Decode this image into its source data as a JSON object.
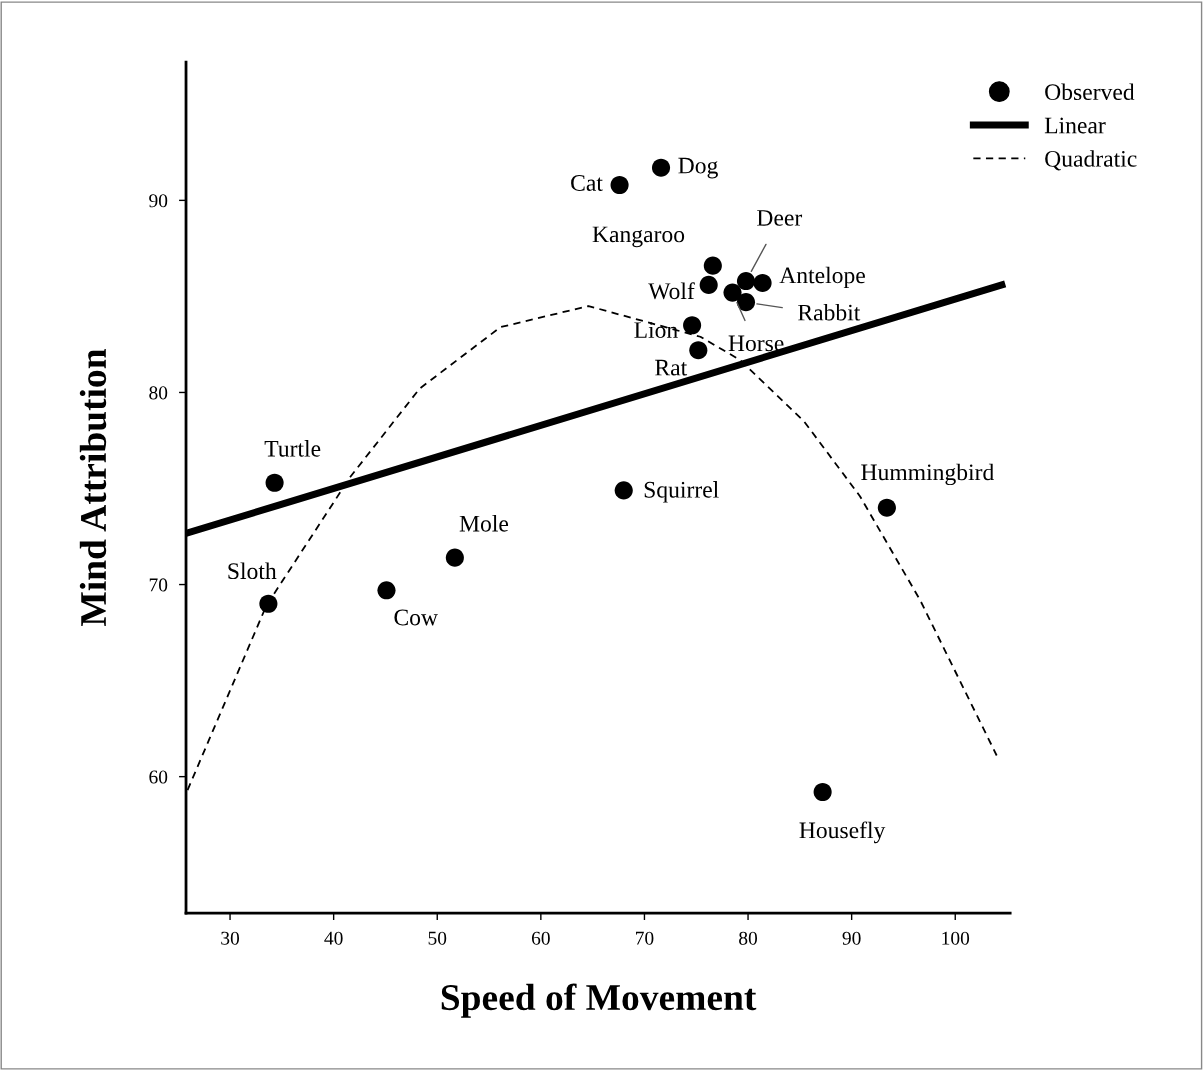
{
  "chart_data": {
    "type": "scatter",
    "xlabel": "Speed of Movement",
    "ylabel": "Mind Attribution",
    "xlim": [
      25.75,
      105.3
    ],
    "ylim": [
      52.9,
      97.2
    ],
    "xticks": [
      30,
      40,
      50,
      60,
      70,
      80,
      90,
      100
    ],
    "yticks": [
      60,
      70,
      80,
      90
    ],
    "grid": false,
    "legend": "top right",
    "series": [
      {
        "name": "Observed",
        "marker": "circle",
        "color": "#000000",
        "x": [
          71.6,
          67.6,
          76.6,
          79.8,
          76.2,
          81.4,
          79.8,
          78.5,
          74.6,
          75.2,
          34.3,
          68.0,
          93.4,
          51.7,
          45.1,
          33.7,
          87.2
        ],
        "values": [
          91.7,
          90.8,
          86.6,
          85.8,
          85.6,
          85.7,
          84.7,
          85.2,
          83.5,
          82.2,
          75.3,
          74.9,
          74.0,
          71.4,
          69.7,
          69.0,
          59.2
        ]
      },
      {
        "name": "Linear",
        "type": "line",
        "line_style": "solid",
        "marker": "none",
        "color": "#000000",
        "x": [
          25.75,
          104.5
        ],
        "values": [
          72.66,
          85.6
        ]
      },
      {
        "name": "Quadratic",
        "type": "line",
        "line_style": "dashed",
        "marker": "none",
        "color": "#000000",
        "x": [
          25.9,
          33.5,
          41.6,
          48.3,
          56.1,
          64.6,
          75.4,
          79.2,
          85.4,
          90.8,
          96.6,
          104.0
        ],
        "values": [
          59.3,
          68.9,
          75.6,
          80.2,
          83.4,
          84.5,
          82.9,
          81.7,
          78.5,
          74.6,
          69.2,
          61.1
        ]
      }
    ],
    "annotations": [
      {
        "text": "Dog",
        "x": 71.6,
        "y": 91.7
      },
      {
        "text": "Cat",
        "x": 67.6,
        "y": 90.8
      },
      {
        "text": "Kangaroo",
        "x": 76.6,
        "y": 86.6
      },
      {
        "text": "Deer",
        "x": 79.8,
        "y": 85.8
      },
      {
        "text": "Wolf",
        "x": 76.2,
        "y": 85.6
      },
      {
        "text": "Antelope",
        "x": 81.4,
        "y": 85.7
      },
      {
        "text": "Rabbit",
        "x": 79.8,
        "y": 84.7
      },
      {
        "text": "Horse",
        "x": 78.5,
        "y": 85.2
      },
      {
        "text": "Lion",
        "x": 74.6,
        "y": 83.5
      },
      {
        "text": "Rat",
        "x": 75.2,
        "y": 82.2
      },
      {
        "text": "Turtle",
        "x": 34.3,
        "y": 75.3
      },
      {
        "text": "Squirrel",
        "x": 68.0,
        "y": 74.9
      },
      {
        "text": "Hummingbird",
        "x": 93.4,
        "y": 74.0
      },
      {
        "text": "Mole",
        "x": 51.7,
        "y": 71.4
      },
      {
        "text": "Cow",
        "x": 45.1,
        "y": 69.7
      },
      {
        "text": "Sloth",
        "x": 33.7,
        "y": 69.0
      },
      {
        "text": "Housefly",
        "x": 87.2,
        "y": 59.2
      }
    ]
  }
}
